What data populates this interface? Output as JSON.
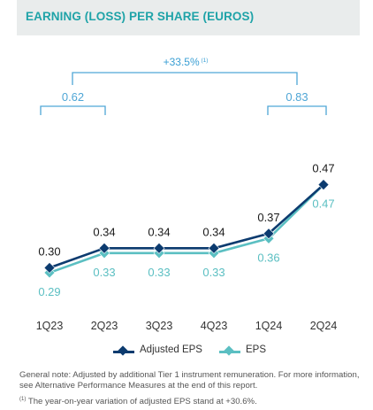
{
  "title": "EARNING (LOSS) PER SHARE (EUROS)",
  "chart_data": {
    "type": "line",
    "categories": [
      "1Q23",
      "2Q23",
      "3Q23",
      "4Q23",
      "1Q24",
      "2Q24"
    ],
    "series": [
      {
        "name": "Adjusted EPS",
        "values": [
          0.3,
          0.34,
          0.34,
          0.34,
          0.37,
          0.47
        ],
        "color": "#0c3b6f",
        "labels": [
          "0.30",
          "0.34",
          "0.34",
          "0.34",
          "0.37",
          "0.47"
        ]
      },
      {
        "name": "EPS",
        "values": [
          0.29,
          0.33,
          0.33,
          0.33,
          0.36,
          0.47
        ],
        "color": "#5bbfc2",
        "labels": [
          "0.29",
          "0.33",
          "0.33",
          "0.33",
          "0.36",
          "0.47"
        ]
      }
    ],
    "ylim": [
      0.25,
      0.5
    ],
    "legend": "bottom-center",
    "grid": false,
    "annotations": {
      "sum_left": {
        "label": "0.62",
        "spans": [
          "1Q23",
          "2Q23"
        ]
      },
      "sum_right": {
        "label": "0.83",
        "spans": [
          "1Q24",
          "2Q24"
        ]
      },
      "variation": {
        "label": "+33.5%",
        "note_ref": "(1)"
      }
    },
    "bracket_color": "#4fa6d6",
    "variation_color": "#3a9fd4"
  },
  "footnotes": {
    "general": "General note: Adjusted by additional Tier 1 instrument remuneration. For more information, see Alternative Performance Measures at the end of this report.",
    "note_ref": "(1)",
    "note1": " The year-on-year variation of adjusted EPS stand at +30.6%."
  }
}
